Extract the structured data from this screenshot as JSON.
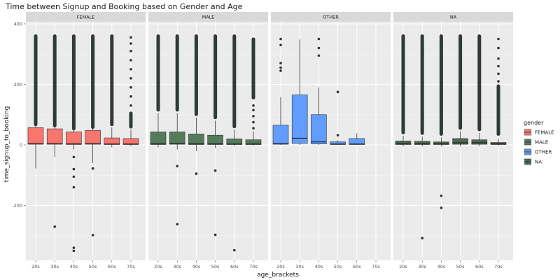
{
  "chart_data": {
    "type": "boxplot",
    "title": "Time between Signup and Booking based on Gender and Age",
    "xlabel": "age_brackets",
    "ylabel": "time_signup_to_booking",
    "ylim": [
      -370,
      400
    ],
    "yticks": [
      400,
      200,
      0,
      -200
    ],
    "categories": [
      "20s",
      "30s",
      "40s",
      "50s",
      "60s",
      "70s"
    ],
    "legend": {
      "title": "gender",
      "position": "right",
      "entries": [
        "FEMALE",
        "MALE",
        "OTHER",
        "NA"
      ]
    },
    "colors": {
      "FEMALE": "#f8766d",
      "MALE": "#557a5c",
      "OTHER": "#619cff",
      "NA": "#3f5a45",
      "panel": "#ebebeb",
      "strip": "#d9d9d9",
      "grid": "#ffffff",
      "outlier": "#333333"
    },
    "panels": [
      {
        "name": "FEMALE",
        "boxes": [
          {
            "cat": "20s",
            "q1": 2,
            "median": 5,
            "q3": 57,
            "lower": -78,
            "upper": 138,
            "dense_range": [
              62,
              365
            ],
            "outliers": []
          },
          {
            "cat": "30s",
            "q1": 2,
            "median": 5,
            "q3": 53,
            "lower": -40,
            "upper": 128,
            "dense_range": [
              58,
              365
            ],
            "outliers": [
              -270
            ]
          },
          {
            "cat": "40s",
            "q1": 1,
            "median": 4,
            "q3": 43,
            "lower": -15,
            "upper": 105,
            "dense_range": [
              48,
              365
            ],
            "outliers": [
              -40,
              -80,
              -105,
              -140,
              -340,
              -350
            ]
          },
          {
            "cat": "50s",
            "q1": 2,
            "median": 5,
            "q3": 48,
            "lower": -60,
            "upper": 118,
            "dense_range": [
              53,
              365
            ],
            "outliers": [
              -78,
              -298
            ]
          },
          {
            "cat": "60s",
            "q1": 1,
            "median": 3,
            "q3": 23,
            "lower": -8,
            "upper": 58,
            "dense_range": [
              62,
              365
            ],
            "outliers": []
          },
          {
            "cat": "70s",
            "q1": 1,
            "median": 3,
            "q3": 21,
            "lower": -5,
            "upper": 50,
            "dense_range": [
              54,
              110
            ],
            "outliers": [
              130,
              160,
              190,
              220,
              250,
              280,
              310,
              335,
              355
            ]
          }
        ]
      },
      {
        "name": "MALE",
        "boxes": [
          {
            "cat": "20s",
            "q1": 1,
            "median": 5,
            "q3": 43,
            "lower": -8,
            "upper": 105,
            "dense_range": [
              110,
              365
            ],
            "outliers": []
          },
          {
            "cat": "30s",
            "q1": 2,
            "median": 5,
            "q3": 43,
            "lower": -15,
            "upper": 105,
            "dense_range": [
              110,
              365
            ],
            "outliers": [
              -70,
              -262
            ]
          },
          {
            "cat": "40s",
            "q1": 1,
            "median": 4,
            "q3": 36,
            "lower": -20,
            "upper": 90,
            "dense_range": [
              95,
              365
            ],
            "outliers": [
              -95
            ]
          },
          {
            "cat": "50s",
            "q1": 1,
            "median": 4,
            "q3": 32,
            "lower": -10,
            "upper": 80,
            "dense_range": [
              85,
              365
            ],
            "outliers": [
              -85,
              -297
            ]
          },
          {
            "cat": "60s",
            "q1": 1,
            "median": 3,
            "q3": 20,
            "lower": -5,
            "upper": 50,
            "dense_range": [
              55,
              365
            ],
            "outliers": [
              -348
            ]
          },
          {
            "cat": "70s",
            "q1": 1,
            "median": 3,
            "q3": 17,
            "lower": -3,
            "upper": 45,
            "dense_range": [
              150,
              355
            ],
            "outliers": [
              55,
              75,
              95,
              115,
              130
            ]
          }
        ]
      },
      {
        "name": "OTHER",
        "boxes": [
          {
            "cat": "20s",
            "q1": 2,
            "median": 5,
            "q3": 65,
            "lower": 0,
            "upper": 158,
            "dense_range": null,
            "outliers": [
              245,
              255,
              270,
              330,
              350
            ]
          },
          {
            "cat": "30s",
            "q1": 5,
            "median": 22,
            "q3": 165,
            "lower": 0,
            "upper": 348,
            "dense_range": null,
            "outliers": []
          },
          {
            "cat": "40s",
            "q1": 3,
            "median": 10,
            "q3": 100,
            "lower": 0,
            "upper": 190,
            "dense_range": null,
            "outliers": [
              295,
              320,
              350
            ]
          },
          {
            "cat": "50s",
            "q1": 1,
            "median": 3,
            "q3": 10,
            "lower": 0,
            "upper": 15,
            "dense_range": null,
            "outliers": [
              32,
              175
            ]
          },
          {
            "cat": "60s",
            "q1": 1,
            "median": 3,
            "q3": 21,
            "lower": 0,
            "upper": 38,
            "dense_range": null,
            "outliers": []
          }
        ]
      },
      {
        "name": "NA",
        "boxes": [
          {
            "cat": "20s",
            "q1": 1,
            "median": 5,
            "q3": 13,
            "lower": -5,
            "upper": 30,
            "dense_range": [
              35,
              365
            ],
            "outliers": []
          },
          {
            "cat": "30s",
            "q1": 1,
            "median": 5,
            "q3": 12,
            "lower": -5,
            "upper": 28,
            "dense_range": [
              33,
              365
            ],
            "outliers": [
              -308
            ]
          },
          {
            "cat": "40s",
            "q1": 1,
            "median": 4,
            "q3": 10,
            "lower": -5,
            "upper": 25,
            "dense_range": [
              30,
              365
            ],
            "outliers": [
              -168,
              -208
            ]
          },
          {
            "cat": "50s",
            "q1": 2,
            "median": 7,
            "q3": 21,
            "lower": -5,
            "upper": 45,
            "dense_range": [
              50,
              365
            ],
            "outliers": []
          },
          {
            "cat": "60s",
            "q1": 2,
            "median": 7,
            "q3": 17,
            "lower": -5,
            "upper": 40,
            "dense_range": [
              45,
              365
            ],
            "outliers": []
          },
          {
            "cat": "70s",
            "q1": 1,
            "median": 4,
            "q3": 8,
            "lower": -3,
            "upper": 20,
            "dense_range": [
              30,
              200
            ],
            "outliers": [
              210,
              235,
              260,
              285,
              320,
              350
            ]
          }
        ]
      }
    ]
  }
}
